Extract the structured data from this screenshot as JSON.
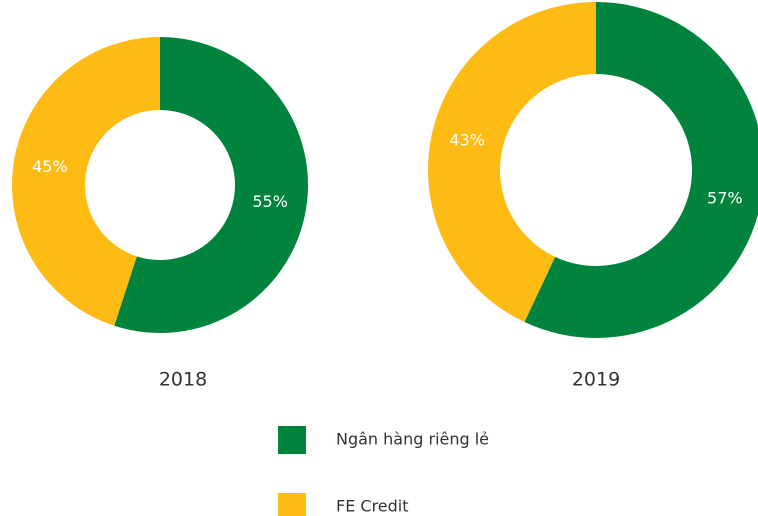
{
  "chart_data": [
    {
      "type": "pie",
      "title": "2018",
      "values": [
        55,
        45
      ],
      "value_labels": [
        "55%",
        "45%"
      ]
    },
    {
      "type": "pie",
      "title": "2019",
      "values": [
        57,
        43
      ],
      "value_labels": [
        "57%",
        "43%"
      ]
    }
  ],
  "legend": {
    "items": [
      {
        "name": "Ngân hàng riêng lẻ",
        "color": "#00843d"
      },
      {
        "name": "FE Credit",
        "color": "#fdbb13"
      }
    ]
  }
}
